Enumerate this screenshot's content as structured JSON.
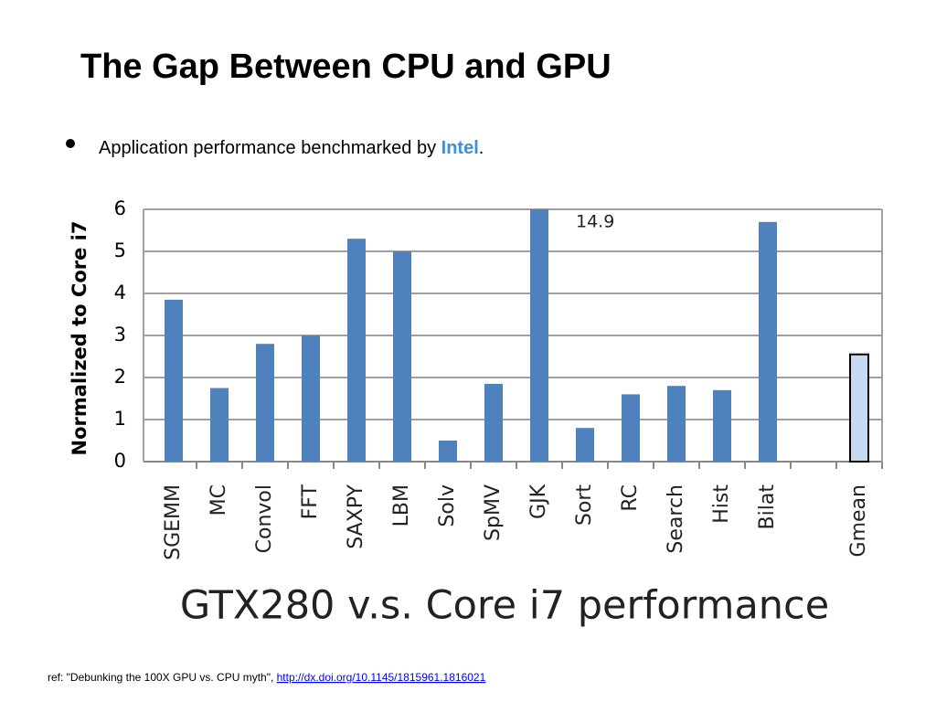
{
  "slide": {
    "title": "The Gap Between CPU and GPU",
    "bullet": {
      "text": "Application performance benchmarked by ",
      "highlight": "Intel",
      "end": "."
    },
    "ref": {
      "text": "ref: \"Debunking the 100X GPU vs. CPU myth\", ",
      "link": "http://dx.doi.org/10.1145/1815961.1816021"
    }
  },
  "chart_data": {
    "type": "bar",
    "title": "GTX280 v.s. Core i7 performance",
    "y_label": "Normalized to Core i7",
    "categories": [
      "SGEMM",
      "MC",
      "Convol",
      "FFT",
      "SAXPY",
      "LBM",
      "Solv",
      "SpMV",
      "GJK",
      "Sort",
      "RC",
      "Search",
      "Hist",
      "Bilat",
      null,
      "Gmean"
    ],
    "values": [
      3.85,
      1.75,
      2.8,
      3.0,
      5.3,
      5.0,
      0.5,
      1.85,
      14.9,
      0.8,
      1.6,
      1.8,
      1.7,
      5.7,
      null,
      2.55
    ],
    "value_labels": [
      null,
      null,
      null,
      null,
      null,
      null,
      null,
      null,
      "14.9",
      null,
      null,
      null,
      null,
      null,
      null,
      null
    ],
    "colors": [
      "#4f81bd",
      "#4f81bd",
      "#4f81bd",
      "#4f81bd",
      "#4f81bd",
      "#4f81bd",
      "#4f81bd",
      "#4f81bd",
      "#4f81bd",
      "#4f81bd",
      "#4f81bd",
      "#4f81bd",
      "#4f81bd",
      "#4f81bd",
      "#4f81bd",
      "#c6d9f1"
    ],
    "ylim": [
      0,
      6
    ],
    "yticks": [
      0,
      1,
      2,
      3,
      4,
      5,
      6
    ],
    "grid": true
  }
}
